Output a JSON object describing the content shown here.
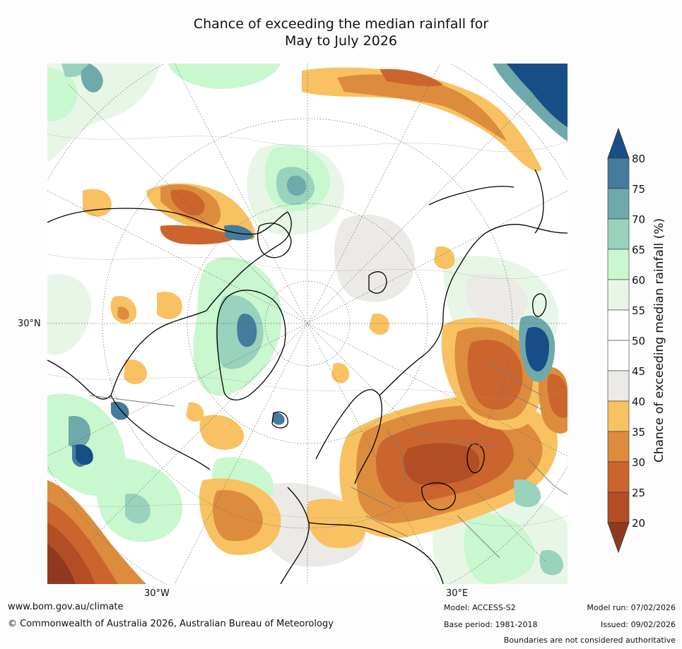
{
  "title": {
    "line1": "Chance of exceeding the median rainfall for",
    "line2": "May to July 2026"
  },
  "map": {
    "lat_label": "30°N",
    "lon_labels": [
      "30°W",
      "30°E"
    ],
    "palette": {
      "dark_brown": "#8f3a1f",
      "brown": "#b34d24",
      "orange_brown": "#cc652d",
      "orange": "#dd8c3e",
      "light_orange": "#f8c262",
      "grey": "#eceae6",
      "white": "#ffffff",
      "pale_green": "#e8f6e7",
      "light_green": "#c9f7ce",
      "green": "#99d2bd",
      "teal": "#6fa9ab",
      "blue_teal": "#457b9c",
      "dark_blue": "#184e86",
      "coast": "#000000",
      "borders": "#777777"
    }
  },
  "colorbar": {
    "title": "Chance of exceeding median rainfall (%)",
    "ticks": [
      "80",
      "75",
      "70",
      "65",
      "60",
      "55",
      "50",
      "45",
      "40",
      "35",
      "30",
      "25",
      "20"
    ],
    "colors_top_to_bottom": [
      "#184e86",
      "#457b9c",
      "#6fa9ab",
      "#99d2bd",
      "#c9f7ce",
      "#e8f6e7",
      "#ffffff",
      "#ffffff",
      "#eceae6",
      "#f8c262",
      "#dd8c3e",
      "#cc652d",
      "#b34d24",
      "#8f3a1f"
    ]
  },
  "footer": {
    "website": "www.bom.gov.au/climate",
    "copyright": "© Commonwealth of Australia 2026, Australian Bureau of Meteorology",
    "model": "Model: ACCESS-S2",
    "base_period": "Base period: 1981-2018",
    "model_run": "Model run: 07/02/2026",
    "issued": "Issued: 09/02/2026",
    "disclaimer": "Boundaries are not considered authoritative"
  }
}
